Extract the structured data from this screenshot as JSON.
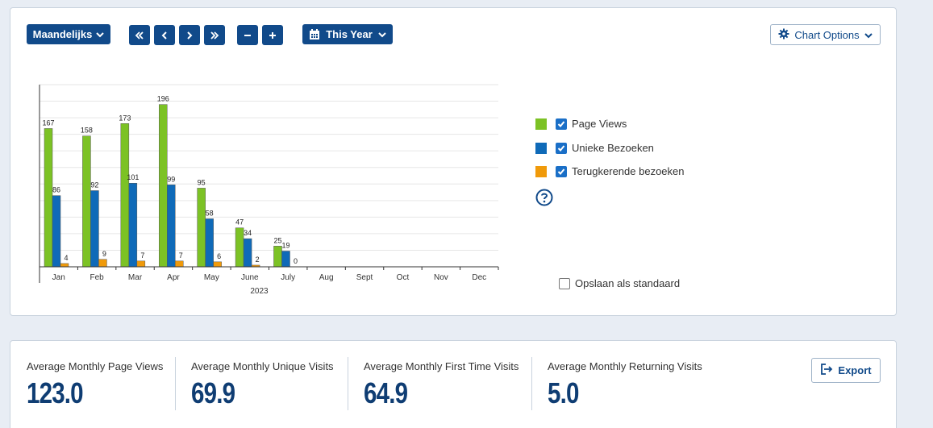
{
  "toolbar": {
    "period_label": "Maandelijks",
    "range_label": "This Year",
    "chart_options_label": "Chart Options"
  },
  "legend": {
    "items": [
      {
        "label": "Page Views",
        "color": "#7cc225",
        "checked": true
      },
      {
        "label": "Unieke Bezoeken",
        "color": "#0f6ab8",
        "checked": true
      },
      {
        "label": "Terugkerende bezoeken",
        "color": "#f09a0a",
        "checked": true
      }
    ],
    "save_default_label": "Opslaan als standaard"
  },
  "chart_data": {
    "type": "bar",
    "categories": [
      "Jan",
      "Feb",
      "Mar",
      "Apr",
      "May",
      "June",
      "July",
      "Aug",
      "Sept",
      "Oct",
      "Nov",
      "Dec"
    ],
    "xlabel": "2023",
    "ylim": [
      0,
      220
    ],
    "grid": true,
    "legend_position": "right",
    "series": [
      {
        "name": "Page Views",
        "color": "#7cc225",
        "values": [
          167,
          158,
          173,
          196,
          95,
          47,
          25,
          null,
          null,
          null,
          null,
          null
        ]
      },
      {
        "name": "Unieke Bezoeken",
        "color": "#0f6ab8",
        "values": [
          86,
          92,
          101,
          99,
          58,
          34,
          19,
          null,
          null,
          null,
          null,
          null
        ]
      },
      {
        "name": "Terugkerende bezoeken",
        "color": "#f09a0a",
        "values": [
          4,
          9,
          7,
          7,
          6,
          2,
          0,
          null,
          null,
          null,
          null,
          null
        ]
      }
    ]
  },
  "stats": [
    {
      "label": "Average Monthly Page Views",
      "value": "123.0"
    },
    {
      "label": "Average Monthly Unique Visits",
      "value": "69.9"
    },
    {
      "label": "Average Monthly First Time Visits",
      "value": "64.9"
    },
    {
      "label": "Average Monthly Returning Visits",
      "value": "5.0"
    }
  ],
  "export_label": "Export"
}
